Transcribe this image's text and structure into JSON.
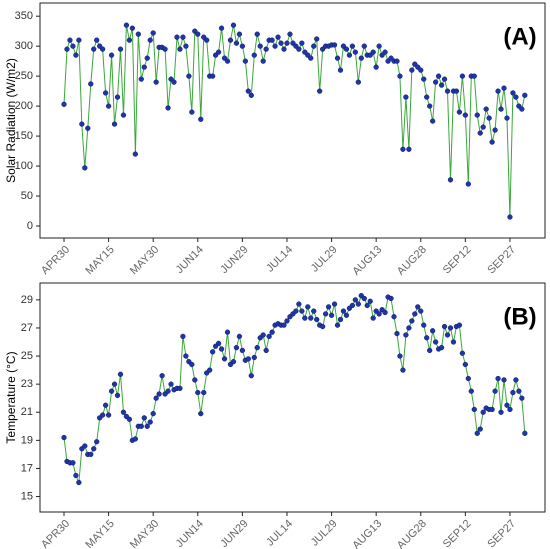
{
  "chart_data": [
    {
      "type": "line",
      "ylabel": "Solar Radiation (W/m2)",
      "annotation": "(A)",
      "categories": [
        "APR30",
        null,
        null,
        null,
        null,
        null,
        null,
        null,
        null,
        null,
        null,
        null,
        null,
        null,
        null,
        "MAY15",
        null,
        null,
        null,
        null,
        null,
        null,
        null,
        null,
        null,
        null,
        null,
        null,
        null,
        null,
        "MAY30",
        null,
        null,
        null,
        null,
        null,
        null,
        null,
        null,
        null,
        null,
        null,
        null,
        null,
        null,
        "JUN14",
        null,
        null,
        null,
        null,
        null,
        null,
        null,
        null,
        null,
        null,
        null,
        null,
        null,
        null,
        "JUN29",
        null,
        null,
        null,
        null,
        null,
        null,
        null,
        null,
        null,
        null,
        null,
        null,
        null,
        null,
        "JUL14",
        null,
        null,
        null,
        null,
        null,
        null,
        null,
        null,
        null,
        null,
        null,
        null,
        null,
        null,
        "JUL29",
        null,
        null,
        null,
        null,
        null,
        null,
        null,
        null,
        null,
        null,
        null,
        null,
        null,
        null,
        "AUG13",
        null,
        null,
        null,
        null,
        null,
        null,
        null,
        null,
        null,
        null,
        null,
        null,
        null,
        null,
        "AUG28",
        null,
        null,
        null,
        null,
        null,
        null,
        null,
        null,
        null,
        null,
        null,
        null,
        null,
        null,
        "SEP12",
        null,
        null,
        null,
        null,
        null,
        null,
        null,
        null,
        null,
        null,
        null,
        null,
        null,
        null,
        "SEP27",
        null,
        null,
        null,
        null,
        null
      ],
      "series": [
        {
          "color": "#3aa83a",
          "marker_color": "#1f35a8",
          "values": [
            203,
            295,
            310,
            300,
            285,
            310,
            170,
            97,
            163,
            237,
            295,
            310,
            300,
            295,
            222,
            200,
            285,
            170,
            215,
            295,
            185,
            335,
            310,
            330,
            120,
            320,
            245,
            265,
            280,
            310,
            322,
            240,
            298,
            298,
            295,
            197,
            245,
            240,
            315,
            295,
            315,
            300,
            250,
            190,
            325,
            320,
            178,
            315,
            310,
            250,
            250,
            285,
            290,
            330,
            280,
            275,
            310,
            335,
            305,
            320,
            300,
            275,
            225,
            218,
            285,
            320,
            300,
            275,
            295,
            310,
            310,
            300,
            315,
            305,
            295,
            305,
            320,
            305,
            300,
            295,
            305,
            290,
            285,
            280,
            300,
            312,
            225,
            295,
            300,
            300,
            302,
            302,
            280,
            260,
            300,
            295,
            285,
            300,
            290,
            240,
            280,
            300,
            285,
            285,
            290,
            265,
            300,
            285,
            290,
            275,
            280,
            275,
            275,
            250,
            128,
            215,
            128,
            260,
            270,
            265,
            260,
            245,
            215,
            200,
            175,
            240,
            250,
            235,
            245,
            225,
            77,
            225,
            225,
            190,
            250,
            185,
            70,
            250,
            250,
            185,
            155,
            165,
            195,
            180,
            140,
            160,
            225,
            195,
            230,
            180,
            15,
            222,
            215,
            200,
            195,
            218
          ]
        }
      ],
      "ylim": [
        -20,
        372
      ],
      "yticks": [
        0,
        50,
        100,
        150,
        200,
        250,
        300,
        350
      ]
    },
    {
      "type": "line",
      "ylabel": "Temperature (°C)",
      "annotation": "(B)",
      "categories": [
        "APR30",
        null,
        null,
        null,
        null,
        null,
        null,
        null,
        null,
        null,
        null,
        null,
        null,
        null,
        null,
        "MAY15",
        null,
        null,
        null,
        null,
        null,
        null,
        null,
        null,
        null,
        null,
        null,
        null,
        null,
        null,
        "MAY30",
        null,
        null,
        null,
        null,
        null,
        null,
        null,
        null,
        null,
        null,
        null,
        null,
        null,
        null,
        "JUN14",
        null,
        null,
        null,
        null,
        null,
        null,
        null,
        null,
        null,
        null,
        null,
        null,
        null,
        null,
        "JUN29",
        null,
        null,
        null,
        null,
        null,
        null,
        null,
        null,
        null,
        null,
        null,
        null,
        null,
        null,
        "JUL14",
        null,
        null,
        null,
        null,
        null,
        null,
        null,
        null,
        null,
        null,
        null,
        null,
        null,
        null,
        "JUL29",
        null,
        null,
        null,
        null,
        null,
        null,
        null,
        null,
        null,
        null,
        null,
        null,
        null,
        null,
        "AUG13",
        null,
        null,
        null,
        null,
        null,
        null,
        null,
        null,
        null,
        null,
        null,
        null,
        null,
        null,
        "AUG28",
        null,
        null,
        null,
        null,
        null,
        null,
        null,
        null,
        null,
        null,
        null,
        null,
        null,
        null,
        "SEP12",
        null,
        null,
        null,
        null,
        null,
        null,
        null,
        null,
        null,
        null,
        null,
        null,
        null,
        null,
        "SEP27",
        null,
        null,
        null,
        null,
        null
      ],
      "series": [
        {
          "color": "#3aa83a",
          "marker_color": "#1f35a8",
          "values": [
            19.2,
            17.5,
            17.4,
            17.4,
            16.5,
            16,
            18.4,
            18.6,
            18,
            18,
            18.4,
            18.9,
            20.6,
            20.8,
            21.5,
            20.8,
            22.5,
            23,
            22.2,
            23.7,
            21,
            20.7,
            20.5,
            19,
            19.1,
            20,
            20,
            20.6,
            20,
            20.3,
            20.9,
            22,
            22.3,
            23.6,
            22.3,
            22.5,
            23,
            22.6,
            22.7,
            22.7,
            26.4,
            25,
            24.6,
            24.4,
            23.3,
            22.4,
            20.9,
            22.4,
            23.8,
            24,
            25.3,
            25.7,
            25.9,
            25.5,
            24.8,
            26.7,
            24.4,
            24.6,
            25.6,
            26.4,
            25.4,
            24.7,
            24.8,
            23.6,
            24.9,
            25.6,
            26.3,
            26.5,
            25.4,
            26.4,
            26.7,
            27.2,
            27.3,
            27.2,
            27.2,
            27.5,
            27.8,
            28,
            28.2,
            28.7,
            28.2,
            27.7,
            28.5,
            27.7,
            28.2,
            27.6,
            27.2,
            27.1,
            28,
            28.5,
            27.9,
            28.7,
            27.2,
            27.6,
            28.2,
            27.9,
            28.4,
            28.6,
            29,
            28.7,
            29.3,
            29.1,
            28.6,
            28.9,
            27.7,
            28.2,
            28,
            28.3,
            28.1,
            29.2,
            29.1,
            27.8,
            26.6,
            25,
            24,
            26.5,
            27,
            27.5,
            28,
            28.5,
            28.2,
            27.2,
            26.3,
            25.4,
            26.8,
            26,
            25.5,
            25.6,
            27.1,
            26.5,
            27,
            26,
            27.1,
            27.2,
            25.2,
            24.4,
            23.4,
            22.5,
            21.2,
            19.5,
            19.8,
            21,
            21.3,
            21.2,
            21.2,
            22.5,
            23.4,
            21,
            23.3,
            21.5,
            21.2,
            22.4,
            23.3,
            22.5,
            22,
            19.5
          ]
        }
      ],
      "ylim": [
        13.9,
        30.2
      ],
      "yticks": [
        15,
        17,
        19,
        21,
        23,
        25,
        27,
        29
      ]
    }
  ]
}
